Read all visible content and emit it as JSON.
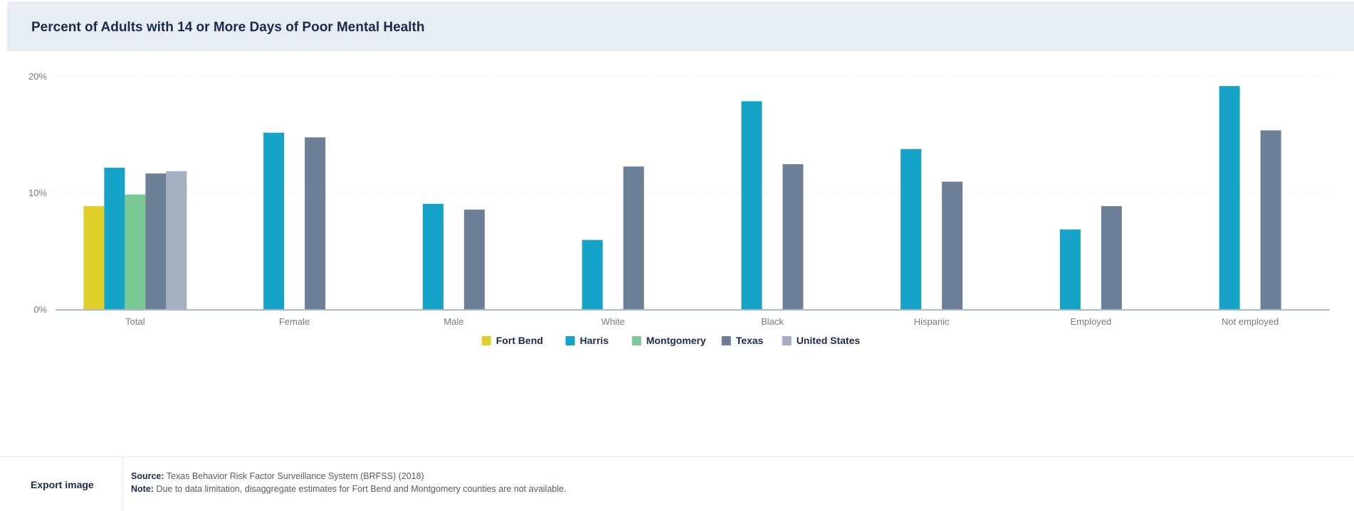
{
  "header": {
    "title": "Percent of Adults with 14 or More Days of Poor Mental Health"
  },
  "colors": {
    "Fort Bend": "#e0cf2a",
    "Harris": "#16a3c8",
    "Montgomery": "#7bc993",
    "Texas": "#6d7f96",
    "United States": "#a4b0c0",
    "gridline": "#e6eaef",
    "axis": "#aeb8c8"
  },
  "chart_data": {
    "type": "bar",
    "title": "Percent of Adults with 14 or More Days of Poor Mental Health",
    "xlabel": "",
    "ylabel": "",
    "ylim": [
      0,
      20
    ],
    "yticks": [
      0,
      10,
      20
    ],
    "ytick_labels": [
      "0%",
      "10%",
      "20%"
    ],
    "categories": [
      "Total",
      "Female",
      "Male",
      "White",
      "Black",
      "Hispanic",
      "Employed",
      "Not employed"
    ],
    "series": [
      {
        "name": "Fort Bend",
        "values": [
          8.9,
          null,
          null,
          null,
          null,
          null,
          null,
          null
        ]
      },
      {
        "name": "Harris",
        "values": [
          12.2,
          15.2,
          9.1,
          6.0,
          17.9,
          13.8,
          6.9,
          19.2
        ]
      },
      {
        "name": "Montgomery",
        "values": [
          9.9,
          null,
          null,
          null,
          null,
          null,
          null,
          null
        ]
      },
      {
        "name": "Texas",
        "values": [
          11.7,
          14.8,
          8.6,
          12.3,
          12.5,
          11.0,
          8.9,
          15.4
        ]
      },
      {
        "name": "United States",
        "values": [
          11.9,
          null,
          null,
          null,
          null,
          null,
          null,
          null
        ]
      }
    ],
    "legend_position": "bottom-center",
    "grid": true
  },
  "footer": {
    "export_label": "Export image",
    "source_label": "Source:",
    "source_text": " Texas Behavior Risk Factor Surveillance System (BRFSS) (2018)",
    "note_label": "Note:",
    "note_text": " Due to data limitation, disaggregate estimates for Fort Bend and Montgomery counties are not available."
  }
}
